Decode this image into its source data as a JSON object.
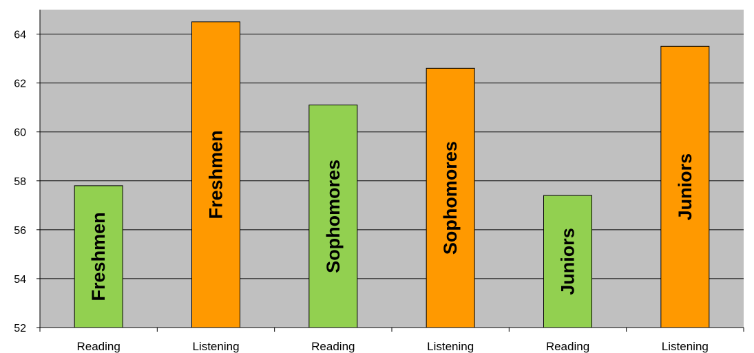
{
  "chart_data": {
    "type": "bar",
    "title": "",
    "xlabel": "",
    "ylabel": "",
    "ylim": [
      52,
      65
    ],
    "yticks": [
      52,
      54,
      56,
      58,
      60,
      62,
      64
    ],
    "grid": true,
    "categories": [
      "Reading",
      "Listening",
      "Reading",
      "Listening",
      "Reading",
      "Listening"
    ],
    "bar_labels": [
      "Freshmen",
      "Freshmen",
      "Sophomores",
      "Sophomores",
      "Juniors",
      "Juniors"
    ],
    "values": [
      57.8,
      64.5,
      61.1,
      62.6,
      57.4,
      63.5
    ],
    "bar_colors": [
      "#92d050",
      "#ff9900",
      "#92d050",
      "#ff9900",
      "#92d050",
      "#ff9900"
    ],
    "plot_background": "#c0c0c0"
  }
}
